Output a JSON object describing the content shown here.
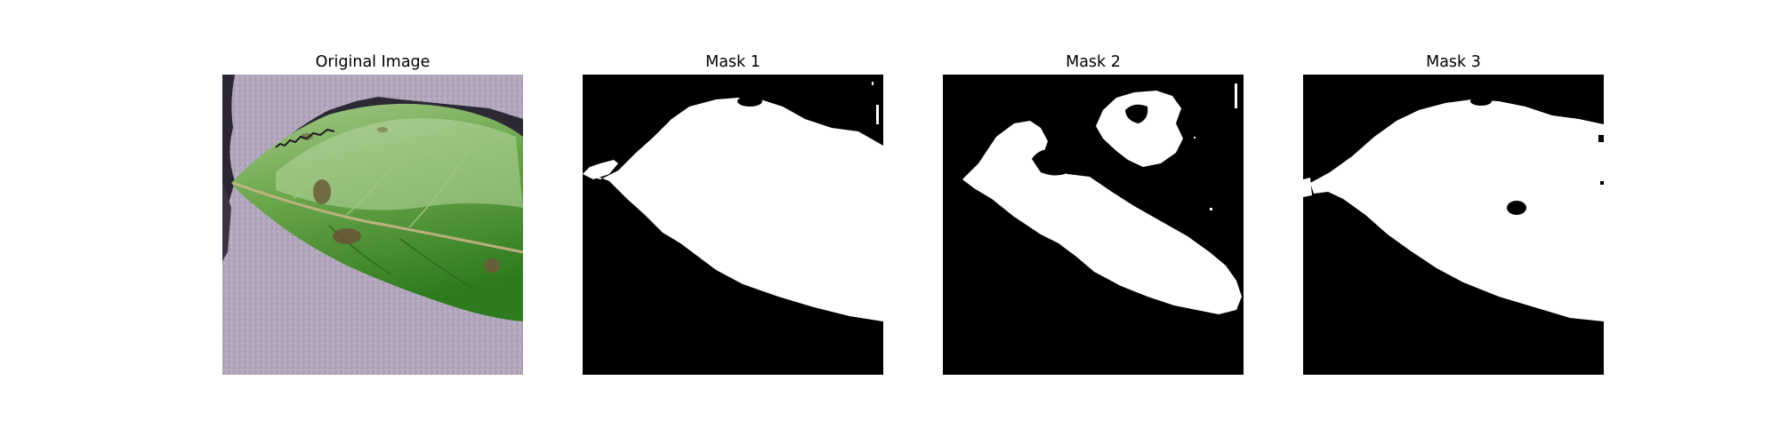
{
  "figure": {
    "panels": [
      {
        "title": "Original Image",
        "kind": "photo"
      },
      {
        "title": "Mask 1",
        "kind": "mask"
      },
      {
        "title": "Mask 2",
        "kind": "mask"
      },
      {
        "title": "Mask 3",
        "kind": "mask"
      }
    ]
  },
  "colors": {
    "background": "#b3a8bd",
    "leaf_light": "#8dbb6a",
    "leaf_dark": "#3f8a2a",
    "mask_fg": "#ffffff",
    "mask_bg": "#000000"
  },
  "icons": [
    "leaf-photo",
    "binary-mask"
  ]
}
